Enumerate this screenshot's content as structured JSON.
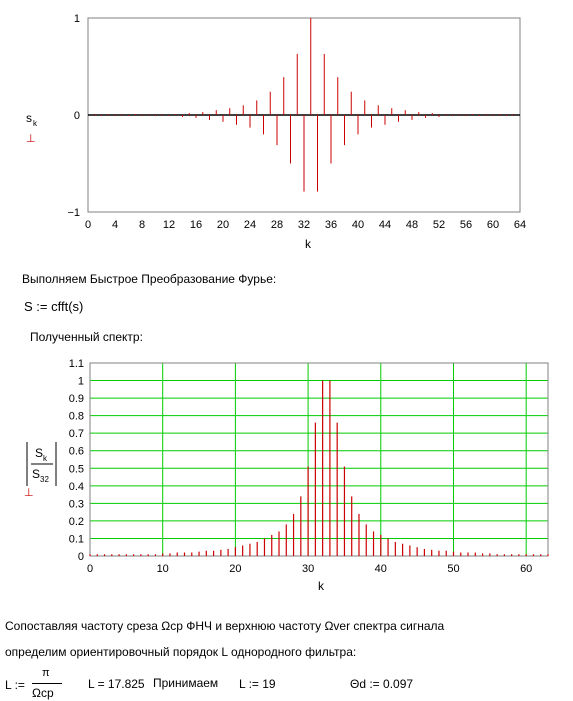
{
  "chart_data": [
    {
      "type": "stem",
      "ylabel": "s",
      "ylabel_sub": "k",
      "xlabel": "k",
      "xlim": [
        0,
        64
      ],
      "ylim": [
        -1,
        1
      ],
      "x_ticks": [
        "0",
        "4",
        "8",
        "12",
        "16",
        "20",
        "24",
        "28",
        "32",
        "36",
        "40",
        "44",
        "48",
        "52",
        "56",
        "60",
        "64"
      ],
      "y_ticks": [
        "1",
        "0",
        "−1"
      ],
      "x": [
        0,
        1,
        2,
        3,
        4,
        5,
        6,
        7,
        8,
        9,
        10,
        11,
        12,
        13,
        14,
        15,
        16,
        17,
        18,
        19,
        20,
        21,
        22,
        23,
        24,
        25,
        26,
        27,
        28,
        29,
        30,
        31,
        32,
        33,
        34,
        35,
        36,
        37,
        38,
        39,
        40,
        41,
        42,
        43,
        44,
        45,
        46,
        47,
        48,
        49,
        50,
        51,
        52,
        53,
        54,
        55,
        56,
        57,
        58,
        59,
        60,
        61,
        62,
        63
      ],
      "values": [
        0,
        0.01,
        -0.01,
        0.01,
        -0.01,
        0.01,
        -0.01,
        0.01,
        -0.01,
        0.01,
        -0.01,
        0.01,
        -0.01,
        0.01,
        -0.02,
        0.02,
        -0.03,
        0.03,
        -0.05,
        0.05,
        -0.07,
        0.07,
        -0.1,
        0.1,
        -0.13,
        0.15,
        -0.2,
        0.24,
        -0.31,
        0.39,
        -0.5,
        0.63,
        -0.79,
        1.0,
        -0.79,
        0.63,
        -0.5,
        0.39,
        -0.31,
        0.24,
        -0.2,
        0.15,
        -0.13,
        0.1,
        -0.1,
        0.07,
        -0.07,
        0.05,
        -0.05,
        0.03,
        -0.03,
        0.02,
        -0.02,
        0.01,
        -0.01,
        0.01,
        -0.01,
        0.01,
        -0.01,
        0.01,
        -0.01,
        0.01,
        -0.01,
        0.01
      ],
      "color": "#cc0000"
    },
    {
      "type": "stem",
      "ylabel_num": "S",
      "ylabel_num_sub": "k",
      "ylabel_den": "S",
      "ylabel_den_sub": "32",
      "xlabel": "k",
      "xlim": [
        0,
        63
      ],
      "ylim": [
        0,
        1.1
      ],
      "grid": true,
      "grid_color": "#00cc00",
      "x_ticks": [
        "0",
        "10",
        "20",
        "30",
        "40",
        "50",
        "60"
      ],
      "y_ticks": [
        "0",
        "0.1",
        "0.2",
        "0.3",
        "0.4",
        "0.5",
        "0.6",
        "0.7",
        "0.8",
        "0.9",
        "1",
        "1.1"
      ],
      "x": [
        0,
        1,
        2,
        3,
        4,
        5,
        6,
        7,
        8,
        9,
        10,
        11,
        12,
        13,
        14,
        15,
        16,
        17,
        18,
        19,
        20,
        21,
        22,
        23,
        24,
        25,
        26,
        27,
        28,
        29,
        30,
        31,
        32,
        33,
        34,
        35,
        36,
        37,
        38,
        39,
        40,
        41,
        42,
        43,
        44,
        45,
        46,
        47,
        48,
        49,
        50,
        51,
        52,
        53,
        54,
        55,
        56,
        57,
        58,
        59,
        60,
        61,
        62,
        63
      ],
      "values": [
        0.01,
        0.01,
        0.01,
        0.01,
        0.01,
        0.01,
        0.01,
        0.01,
        0.01,
        0.01,
        0.015,
        0.015,
        0.02,
        0.02,
        0.02,
        0.025,
        0.03,
        0.03,
        0.035,
        0.04,
        0.05,
        0.06,
        0.07,
        0.08,
        0.1,
        0.12,
        0.14,
        0.18,
        0.24,
        0.34,
        0.51,
        0.76,
        1.0,
        1.0,
        0.76,
        0.51,
        0.34,
        0.24,
        0.18,
        0.14,
        0.12,
        0.1,
        0.08,
        0.07,
        0.06,
        0.05,
        0.04,
        0.035,
        0.03,
        0.03,
        0.025,
        0.02,
        0.02,
        0.02,
        0.015,
        0.015,
        0.01,
        0.01,
        0.01,
        0.01,
        0.01,
        0.01,
        0.01,
        0.01
      ],
      "color": "#cc0000"
    }
  ],
  "text": {
    "fft_intro": "Выполняем Быстрое Преобразование Фурье:",
    "fft_expr": "S := cfft(s)",
    "spectrum_label": "Полученный спектр:",
    "compare_line1": "Сопоставляя частоту среза Ωср  ФНЧ и верхнюю частоту Ωver  спектра сигнала",
    "compare_line2": "определим ориентировочный порядок L однородного фильтра:",
    "L_lhs": "L :=",
    "L_num": "π",
    "L_den": "Ωcp",
    "L_value": "L = 17.825",
    "accept": "Принимаем",
    "L_assign": "L := 19",
    "theta": "Θd := 0.097"
  }
}
